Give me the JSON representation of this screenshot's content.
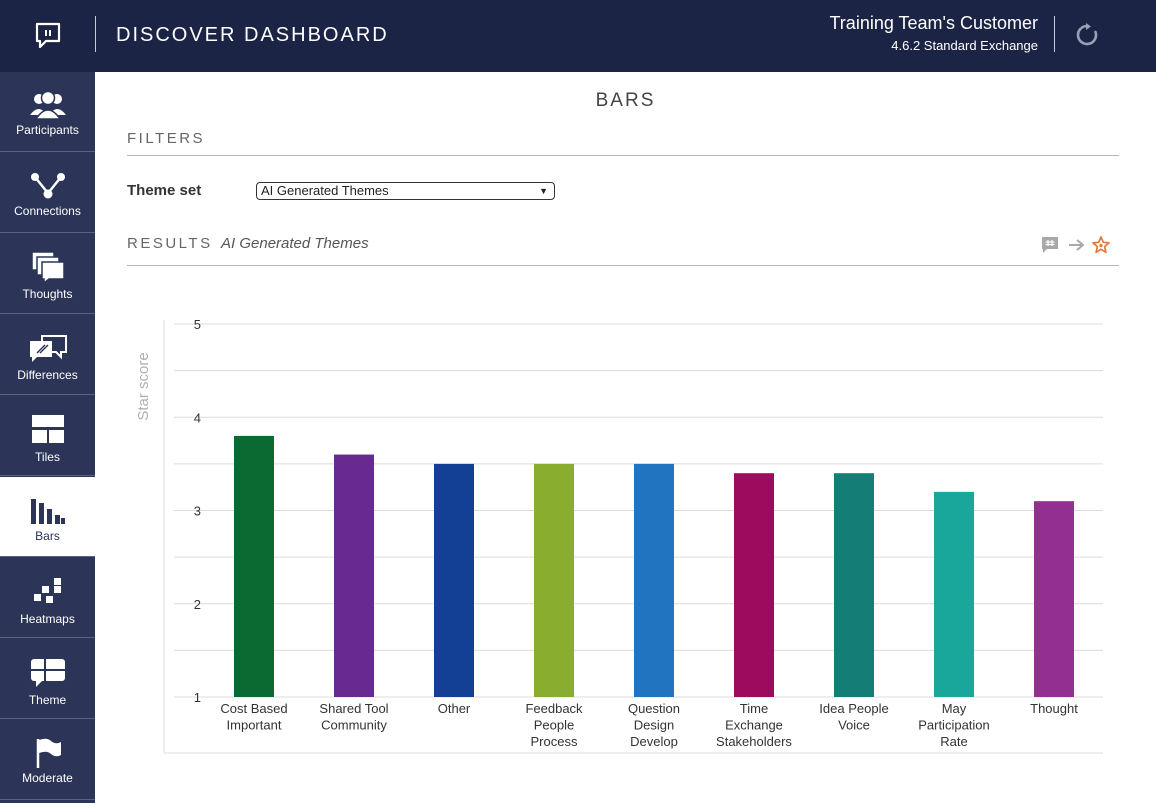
{
  "header": {
    "title": "DISCOVER DASHBOARD",
    "customer": "Training Team's Customer",
    "version": "4.6.2 Standard Exchange",
    "logo_icon": "chat-bubble-icon",
    "refresh_icon": "refresh-icon"
  },
  "sidebar": {
    "items": [
      {
        "label": "Participants",
        "icon": "people-icon"
      },
      {
        "label": "Connections",
        "icon": "connections-icon"
      },
      {
        "label": "Thoughts",
        "icon": "thoughts-icon"
      },
      {
        "label": "Differences",
        "icon": "differences-icon"
      },
      {
        "label": "Tiles",
        "icon": "tiles-icon"
      },
      {
        "label": "Bars",
        "icon": "bars-icon",
        "active": true
      },
      {
        "label": "Heatmaps",
        "icon": "heatmap-icon"
      },
      {
        "label": "Theme",
        "icon": "theme-icon"
      },
      {
        "label": "Moderate",
        "icon": "flag-icon"
      }
    ]
  },
  "main": {
    "page_title": "BARS",
    "filters_label": "FILTERS",
    "theme_set_label": "Theme set",
    "theme_set_value": "AI Generated Themes",
    "results_label": "RESULTS",
    "results_subtitle": "AI Generated Themes",
    "tools": [
      "comment-icon",
      "arrow-right-icon",
      "star-icon"
    ]
  },
  "colors": {
    "header_bg": "#1c2445",
    "sidebar_bg": "#2c3557",
    "star_accent": "#e07a3c"
  },
  "chart_data": {
    "type": "bar",
    "ylabel": "Star score",
    "xlabel": "",
    "ylim": [
      1,
      5
    ],
    "yticks": [
      1,
      2,
      3,
      4,
      5
    ],
    "grid": true,
    "categories": [
      [
        "Cost Based",
        "Important"
      ],
      [
        "Shared Tool",
        "Community"
      ],
      [
        "Other"
      ],
      [
        "Feedback",
        "People",
        "Process"
      ],
      [
        "Question",
        "Design",
        "Develop"
      ],
      [
        "Time",
        "Exchange",
        "Stakeholders"
      ],
      [
        "Idea People",
        "Voice"
      ],
      [
        "May",
        "Participation",
        "Rate"
      ],
      [
        "Thought"
      ]
    ],
    "values": [
      3.8,
      3.6,
      3.5,
      3.5,
      3.5,
      3.4,
      3.4,
      3.2,
      3.1
    ],
    "colors": [
      "#0b6a31",
      "#672a8e",
      "#133f94",
      "#89ae2f",
      "#2175c0",
      "#9d0b5e",
      "#137d76",
      "#19a79c",
      "#922f90"
    ]
  }
}
